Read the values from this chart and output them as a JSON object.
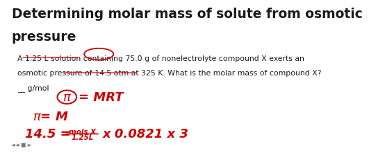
{
  "title_line1": "Determining molar mass of solute from osmotic",
  "title_line2": "pressure",
  "body_line1": "A 1.25 L solution containing 75.0 g of nonelectrolyte compound X exerts an",
  "body_line2": "osmotic pressure of 14.5 atm at 325 K. What is the molar mass of compound X?",
  "body_line3": "__ g/mol",
  "bg_color": "#ffffff",
  "title_color": "#1a1a1a",
  "body_color": "#1a1a1a",
  "red_color": "#cc0000",
  "title_fontsize": 13.5,
  "body_fontsize": 7.8,
  "formula_fontsize": 13,
  "small_formula_fontsize": 7.5,
  "nav_icons": "◄◄ ■ ►"
}
